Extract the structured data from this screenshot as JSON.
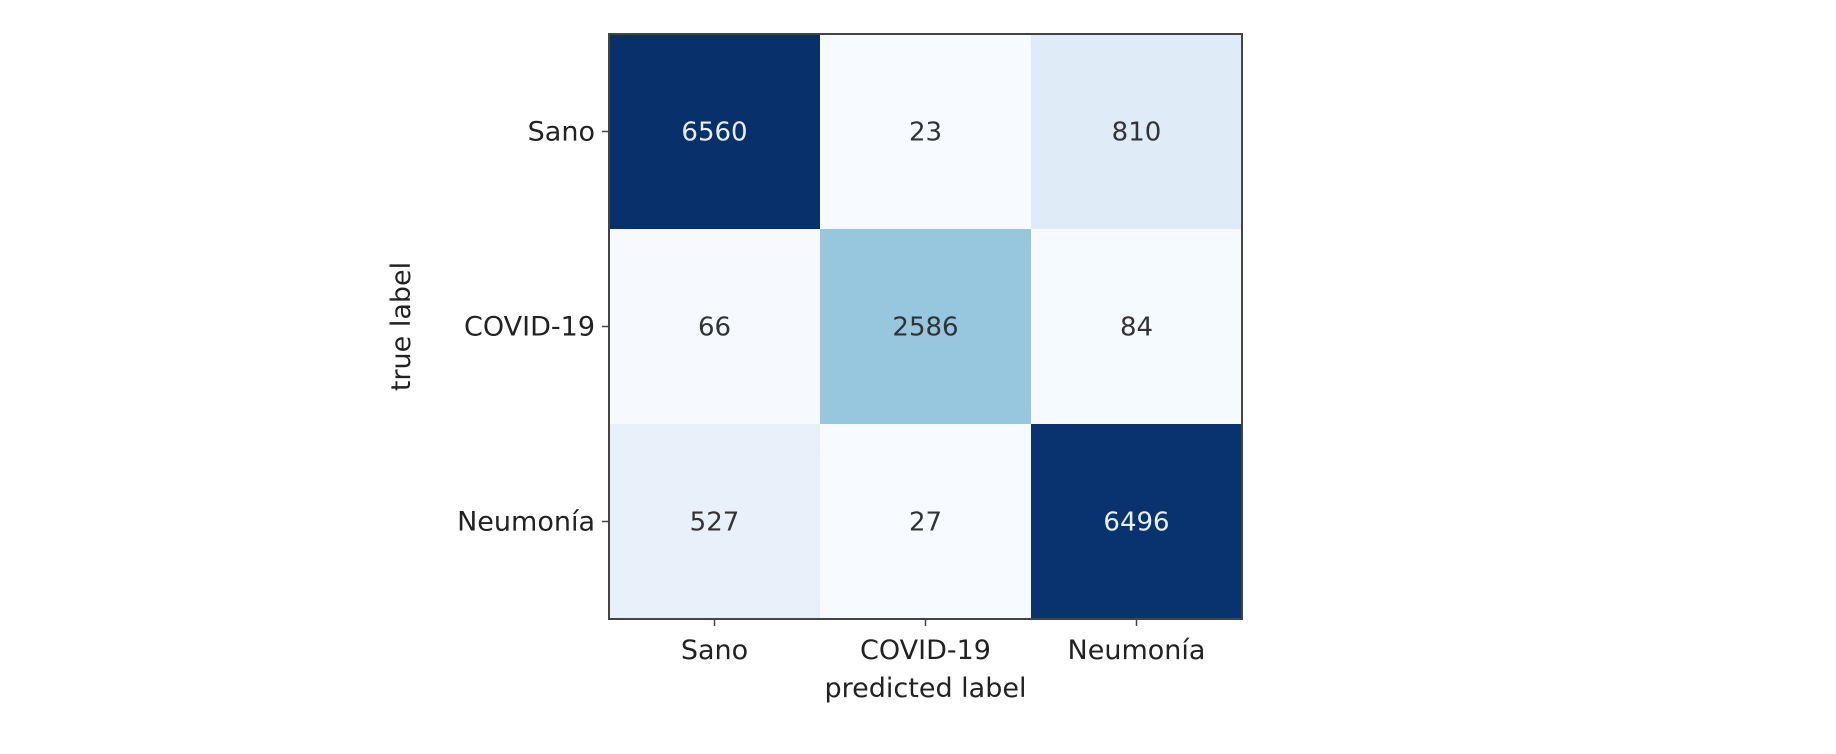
{
  "chart_data": {
    "type": "heatmap",
    "title": "",
    "xlabel": "predicted label",
    "ylabel": "true label",
    "x_categories": [
      "Sano",
      "COVID-19",
      "Neumonía"
    ],
    "y_categories": [
      "Sano",
      "COVID-19",
      "Neumonía"
    ],
    "values": [
      [
        6560,
        23,
        810
      ],
      [
        66,
        2586,
        84
      ],
      [
        527,
        27,
        6496
      ]
    ],
    "colormap": "Blues",
    "colors": {
      "low": "#f7fbff",
      "high": "#08306b",
      "text_dark": "#333333",
      "text_light": "#e8eef7",
      "frame": "#444444"
    },
    "grid": false,
    "colorbar": false
  }
}
